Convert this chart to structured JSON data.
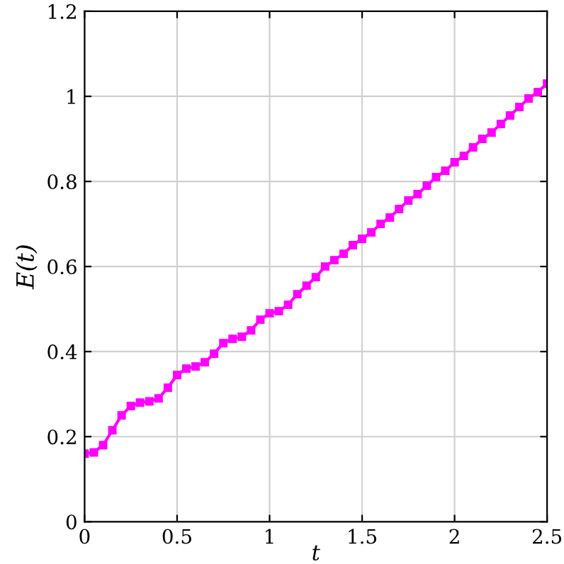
{
  "chart_data": {
    "type": "line",
    "xlabel": "t",
    "ylabel": "E(t)",
    "x": [
      0,
      0.05,
      0.1,
      0.15,
      0.2,
      0.25,
      0.3,
      0.35,
      0.4,
      0.45,
      0.5,
      0.55,
      0.6,
      0.65,
      0.7,
      0.75,
      0.8,
      0.85,
      0.9,
      0.95,
      1.0,
      1.05,
      1.1,
      1.15,
      1.2,
      1.25,
      1.3,
      1.35,
      1.4,
      1.45,
      1.5,
      1.55,
      1.6,
      1.65,
      1.7,
      1.75,
      1.8,
      1.85,
      1.9,
      1.95,
      2.0,
      2.05,
      2.1,
      2.15,
      2.2,
      2.25,
      2.3,
      2.35,
      2.4,
      2.45,
      2.5
    ],
    "series": [
      {
        "color": "#ff00ff",
        "values": [
          0.16,
          0.163,
          0.18,
          0.215,
          0.25,
          0.272,
          0.28,
          0.283,
          0.29,
          0.315,
          0.345,
          0.36,
          0.365,
          0.375,
          0.395,
          0.42,
          0.43,
          0.435,
          0.45,
          0.475,
          0.49,
          0.495,
          0.51,
          0.535,
          0.555,
          0.575,
          0.6,
          0.615,
          0.63,
          0.65,
          0.665,
          0.68,
          0.7,
          0.715,
          0.735,
          0.755,
          0.77,
          0.79,
          0.81,
          0.825,
          0.845,
          0.86,
          0.88,
          0.9,
          0.915,
          0.935,
          0.955,
          0.975,
          0.995,
          1.01,
          1.03
        ]
      }
    ],
    "marker": "square",
    "line_style": "solid",
    "xlim": [
      0,
      2.5
    ],
    "xticks": [
      0,
      0.5,
      1,
      1.5,
      2,
      2.5
    ],
    "ylim": [
      0,
      1.2
    ],
    "yticks": [
      0,
      0.2,
      0.4,
      0.6,
      0.8,
      1,
      1.2
    ],
    "grid": true
  }
}
